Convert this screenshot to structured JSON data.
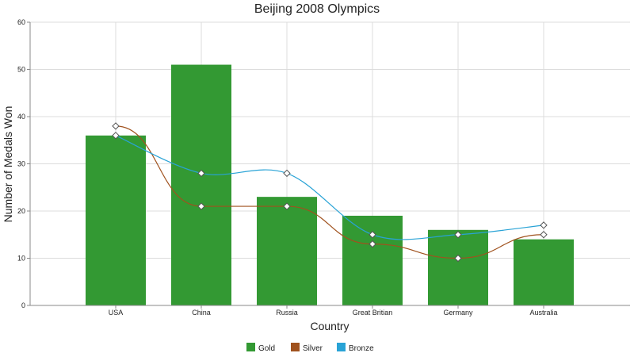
{
  "chart_data": {
    "type": "bar",
    "title": "Beijing 2008 Olympics",
    "xlabel": "Country",
    "ylabel": "Number of Medals Won",
    "categories": [
      "USA",
      "China",
      "Russia",
      "Great Britian",
      "Germany",
      "Australia"
    ],
    "ylim": [
      0,
      60
    ],
    "yticks": [
      0,
      10,
      20,
      30,
      40,
      50,
      60
    ],
    "grid": true,
    "legend_position": "bottom-center",
    "series": [
      {
        "name": "Gold",
        "type": "bar",
        "color": "#339933",
        "values": [
          36,
          51,
          23,
          19,
          16,
          14
        ]
      },
      {
        "name": "Silver",
        "type": "line",
        "color": "#a0521e",
        "values": [
          38,
          21,
          21,
          13,
          10,
          15
        ]
      },
      {
        "name": "Bronze",
        "type": "spline",
        "color": "#29a3d6",
        "values": [
          36,
          28,
          28,
          15,
          15,
          17
        ]
      }
    ]
  }
}
